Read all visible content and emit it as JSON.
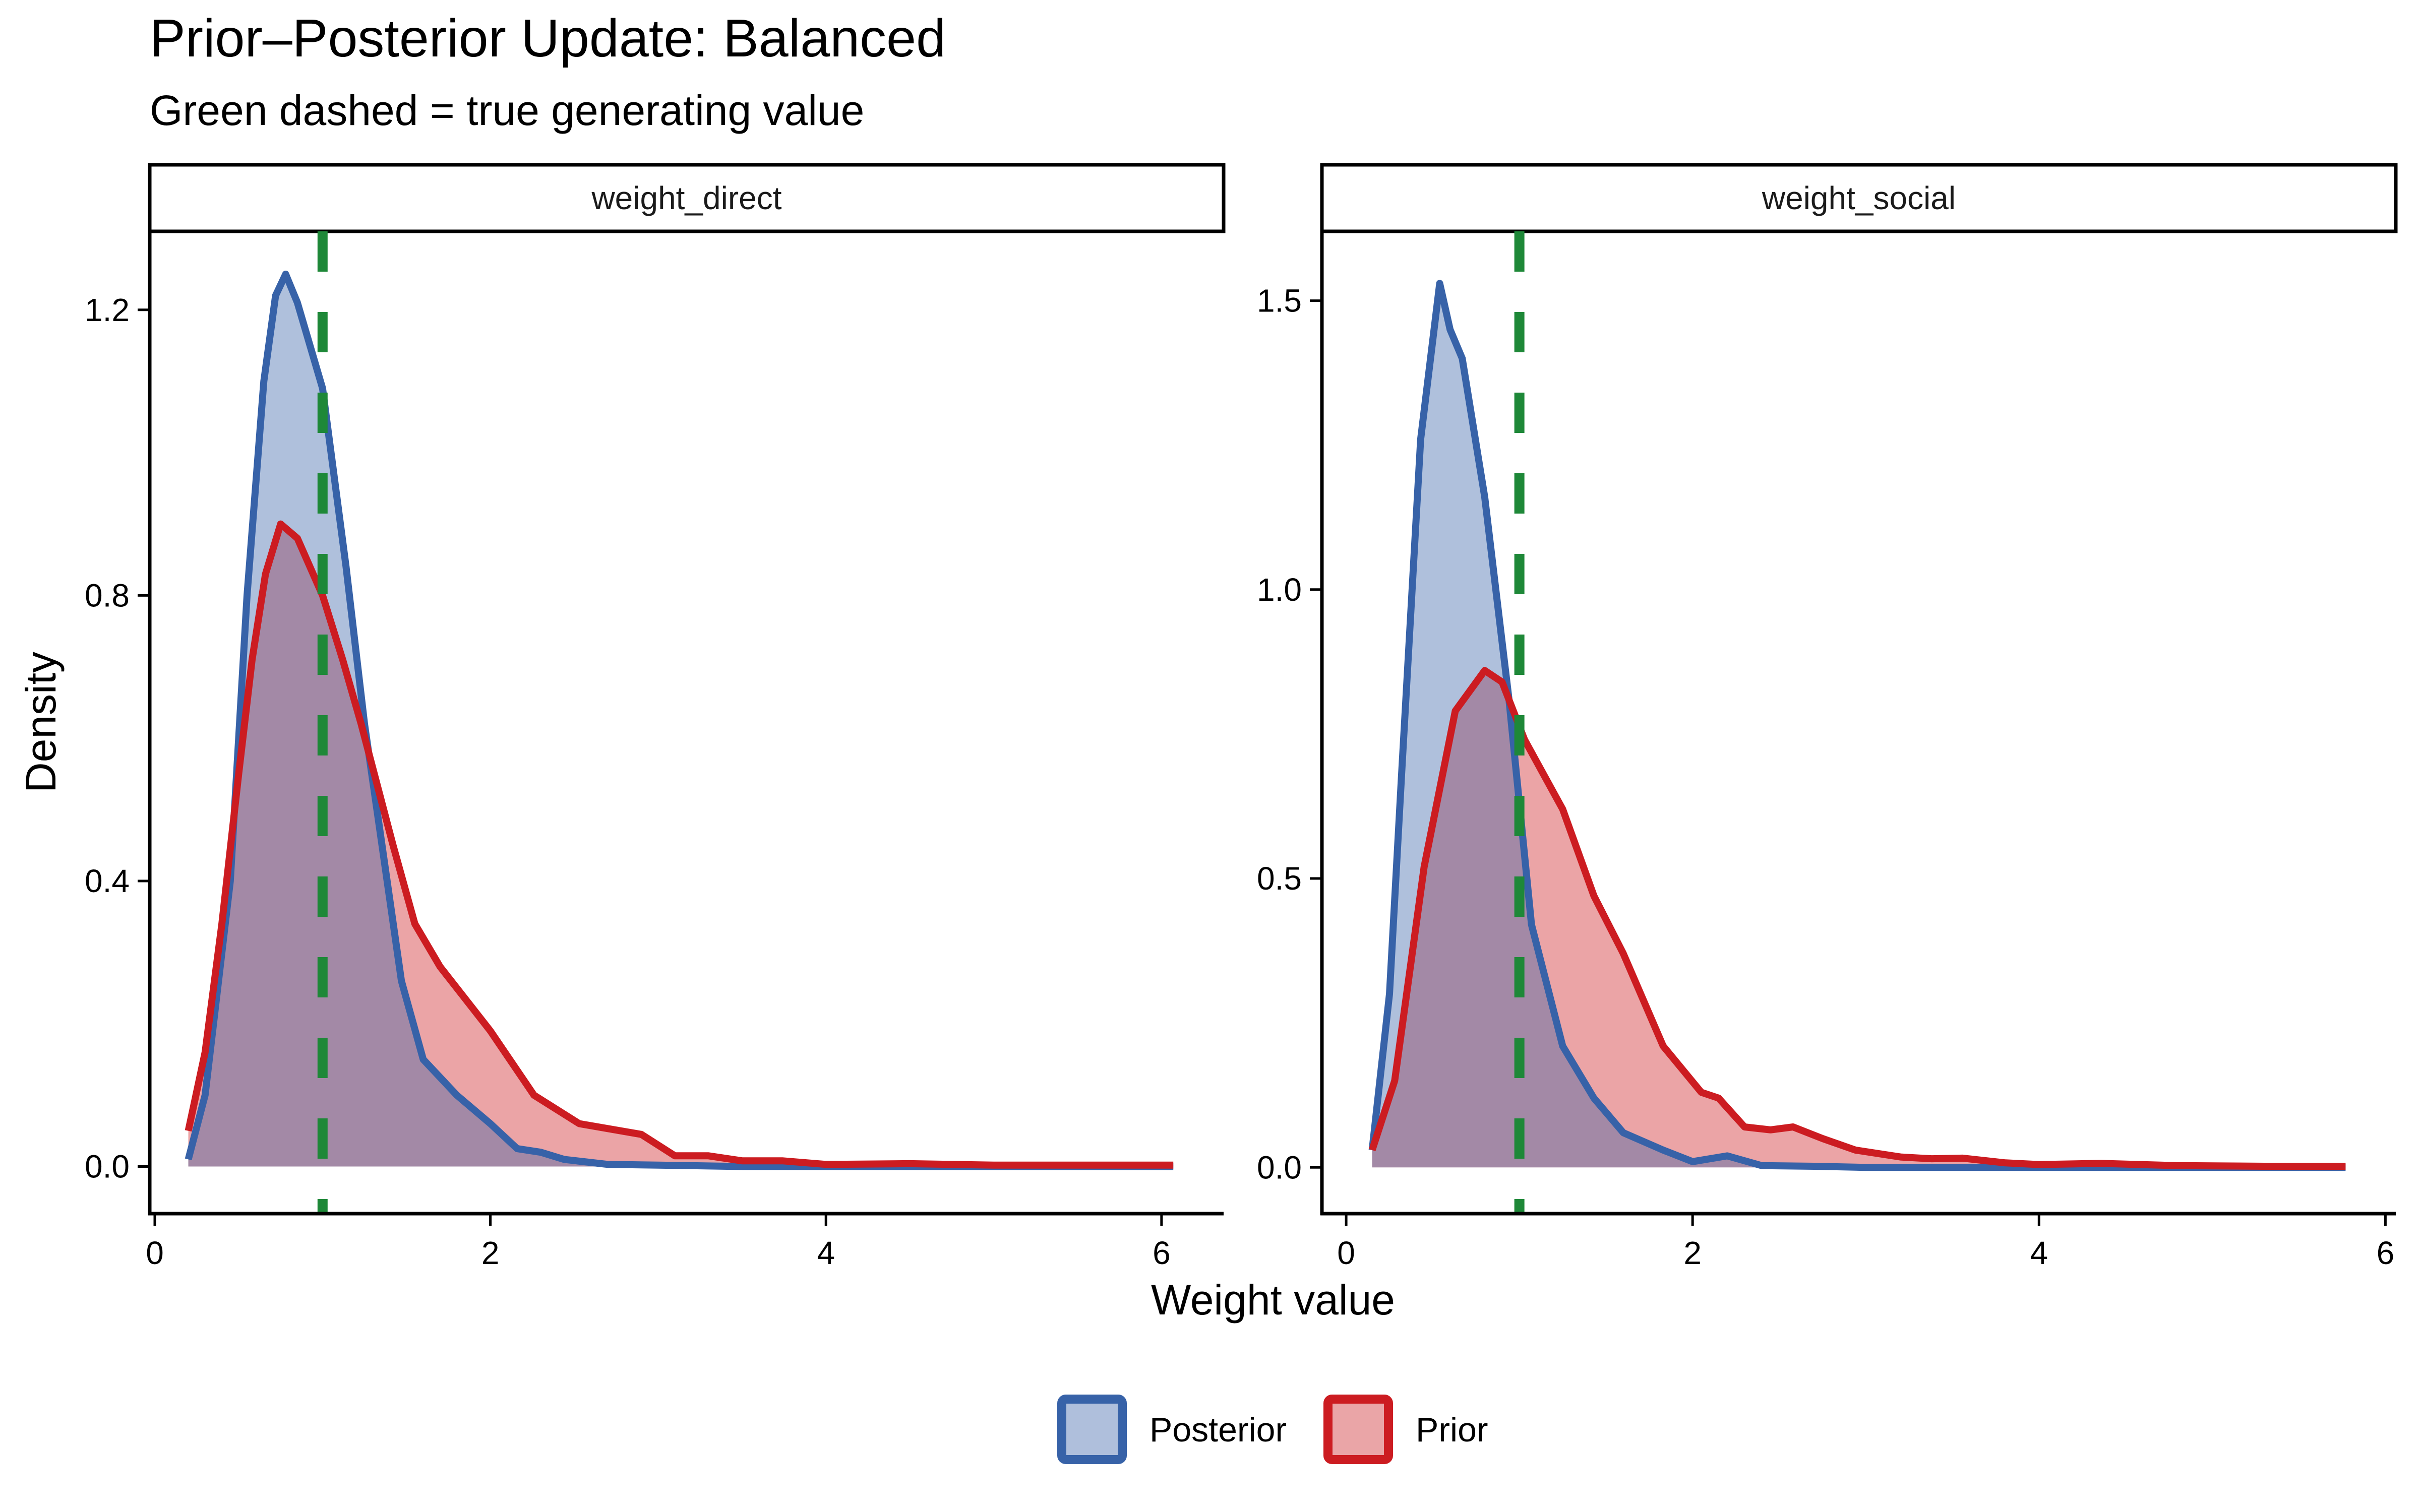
{
  "chart_data": {
    "type": "area",
    "title": "Prior–Posterior Update: Balanced",
    "subtitle": "Green dashed = true generating value",
    "xlabel": "Weight value",
    "ylabel": "Density",
    "legend": {
      "position": "bottom",
      "entries": [
        {
          "name": "Posterior",
          "line": "#3762A8",
          "fill": "#AFBFDC"
        },
        {
          "name": "Prior",
          "line": "#CC1C21",
          "fill": "#EAA5A7"
        }
      ]
    },
    "reference_color": "#1E8838",
    "panels": [
      {
        "strip": "weight_direct",
        "xlim": [
          -0.03,
          6.37
        ],
        "ylim": [
          -0.066,
          1.31
        ],
        "xticks": [
          0,
          2,
          4,
          6
        ],
        "xtick_labels": [
          "0",
          "2",
          "4",
          "6"
        ],
        "yticks": [
          0.0,
          0.4,
          0.8,
          1.2
        ],
        "ytick_labels": [
          "0.0",
          "0.4",
          "0.8",
          "1.2"
        ],
        "true_value": 1.0,
        "series": [
          {
            "name": "Prior",
            "x": [
              0.2,
              0.3,
              0.4,
              0.5,
              0.58,
              0.66,
              0.75,
              0.85,
              1.0,
              1.12,
              1.23,
              1.42,
              1.55,
              1.7,
              2.0,
              2.26,
              2.53,
              2.9,
              3.1,
              3.3,
              3.5,
              3.74,
              4.0,
              4.5,
              5.0,
              5.5,
              6.07
            ],
            "y": [
              0.05,
              0.16,
              0.34,
              0.55,
              0.71,
              0.83,
              0.9,
              0.88,
              0.8,
              0.71,
              0.62,
              0.45,
              0.34,
              0.28,
              0.19,
              0.1,
              0.06,
              0.045,
              0.015,
              0.015,
              0.008,
              0.008,
              0.003,
              0.004,
              0.002,
              0.002,
              0.002
            ]
          },
          {
            "name": "Posterior",
            "x": [
              0.2,
              0.3,
              0.45,
              0.55,
              0.65,
              0.72,
              0.78,
              0.85,
              1.0,
              1.14,
              1.25,
              1.33,
              1.47,
              1.6,
              1.8,
              2.0,
              2.16,
              2.3,
              2.44,
              2.7,
              3.0,
              3.5,
              4.0,
              5.0,
              6.07
            ],
            "y": [
              0.01,
              0.1,
              0.4,
              0.8,
              1.1,
              1.22,
              1.25,
              1.21,
              1.09,
              0.84,
              0.62,
              0.49,
              0.26,
              0.15,
              0.1,
              0.06,
              0.025,
              0.02,
              0.01,
              0.003,
              0.002,
              0.0,
              0.0,
              0.0,
              0.0
            ]
          }
        ]
      },
      {
        "strip": "weight_social",
        "xlim": [
          -0.14,
          6.06
        ],
        "ylim": [
          -0.08,
          1.62
        ],
        "xticks": [
          0,
          2,
          4,
          6
        ],
        "xtick_labels": [
          "0",
          "2",
          "4",
          "6"
        ],
        "yticks": [
          0.0,
          0.5,
          1.0,
          1.5
        ],
        "ytick_labels": [
          "0.0",
          "0.5",
          "1.0",
          "1.5"
        ],
        "true_value": 1.0,
        "series": [
          {
            "name": "Prior",
            "x": [
              0.15,
              0.28,
              0.45,
              0.63,
              0.8,
              0.9,
              1.03,
              1.25,
              1.43,
              1.6,
              1.83,
              2.05,
              2.15,
              2.3,
              2.45,
              2.58,
              2.75,
              2.94,
              3.2,
              3.38,
              3.56,
              3.8,
              4.0,
              4.36,
              4.8,
              5.3,
              5.77
            ],
            "y": [
              0.03,
              0.15,
              0.52,
              0.79,
              0.86,
              0.84,
              0.74,
              0.62,
              0.47,
              0.37,
              0.21,
              0.13,
              0.12,
              0.07,
              0.065,
              0.07,
              0.05,
              0.03,
              0.018,
              0.015,
              0.016,
              0.008,
              0.005,
              0.007,
              0.003,
              0.002,
              0.002
            ]
          },
          {
            "name": "Posterior",
            "x": [
              0.15,
              0.25,
              0.32,
              0.43,
              0.54,
              0.6,
              0.67,
              0.8,
              0.94,
              1.07,
              1.25,
              1.43,
              1.6,
              1.83,
              2.0,
              2.2,
              2.4,
              2.7,
              3.0,
              4.0,
              5.0,
              5.77
            ],
            "y": [
              0.03,
              0.3,
              0.68,
              1.26,
              1.53,
              1.45,
              1.4,
              1.16,
              0.81,
              0.42,
              0.21,
              0.12,
              0.06,
              0.03,
              0.01,
              0.02,
              0.003,
              0.002,
              0.0,
              0.0,
              0.0,
              0.0
            ]
          }
        ]
      }
    ]
  }
}
